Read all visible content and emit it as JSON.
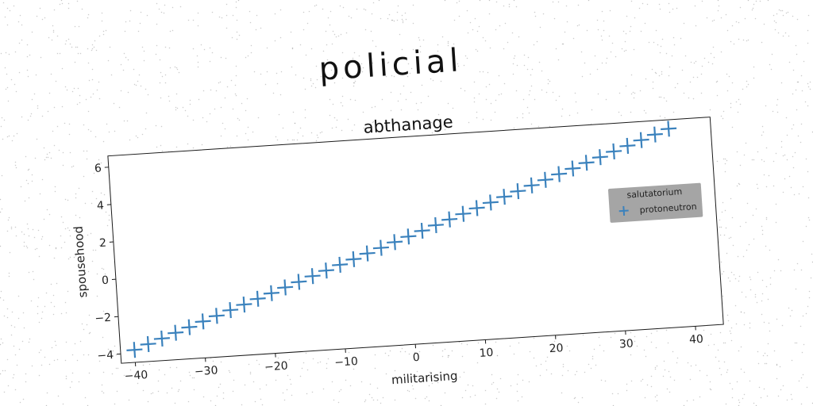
{
  "suptitle": "policial",
  "chart_data": {
    "type": "scatter",
    "title": "abthanage",
    "xlabel": "militarising",
    "ylabel": "spousehood",
    "xlim": [
      -42,
      44
    ],
    "ylim": [
      -4.5,
      6.6
    ],
    "xticks": [
      -40,
      -30,
      -20,
      -10,
      0,
      10,
      20,
      30,
      40
    ],
    "xtick_labels": [
      "−40",
      "−30",
      "−20",
      "−10",
      "0",
      "10",
      "20",
      "30",
      "40"
    ],
    "yticks": [
      -4,
      -2,
      0,
      2,
      4,
      6
    ],
    "ytick_labels": [
      "−4",
      "−2",
      "0",
      "2",
      "4",
      "6"
    ],
    "grid": false,
    "legend": {
      "title": "salutatorium",
      "placement": "right",
      "background": "#999999"
    },
    "series": [
      {
        "name": "protoneutron",
        "marker": "+",
        "color": "#3b82bd",
        "x": [
          -40,
          -38,
          -36,
          -34,
          -32,
          -30,
          -28,
          -26,
          -24,
          -22,
          -20,
          -18,
          -16,
          -14,
          -12,
          -10,
          -8,
          -6,
          -4,
          -2,
          0,
          2,
          4,
          6,
          8,
          10,
          12,
          14,
          16,
          18,
          20,
          22,
          24,
          26,
          28,
          30,
          32,
          34,
          36,
          38
        ],
        "y": [
          -3.83,
          -3.57,
          -3.32,
          -3.06,
          -2.81,
          -2.55,
          -2.3,
          -2.04,
          -1.79,
          -1.53,
          -1.28,
          -1.02,
          -0.77,
          -0.51,
          -0.26,
          0.0,
          0.25,
          0.51,
          0.76,
          1.02,
          1.27,
          1.53,
          1.78,
          2.04,
          2.29,
          2.55,
          2.8,
          3.06,
          3.31,
          3.57,
          3.82,
          4.08,
          4.33,
          4.59,
          4.84,
          5.1,
          5.35,
          5.61,
          5.86,
          6.12
        ]
      }
    ]
  }
}
